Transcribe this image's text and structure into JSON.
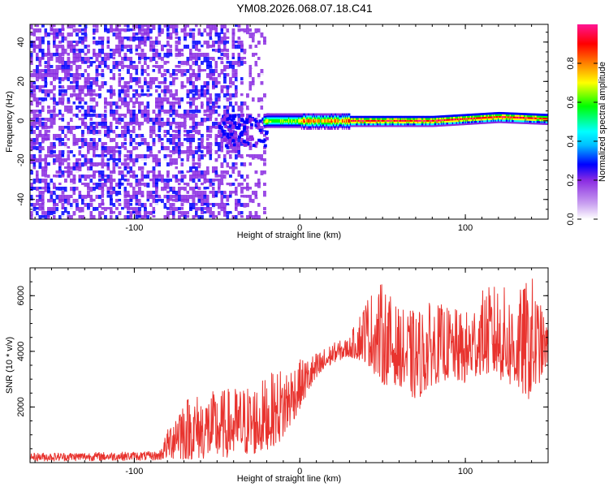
{
  "title": "YM08.2026.068.07.18.C41",
  "chart_data": [
    {
      "type": "heatmap",
      "name": "spectrogram",
      "xlabel": "Height of straight line (km)",
      "ylabel": "Frequency (Hz)",
      "xlim": [
        -163,
        150
      ],
      "ylim": [
        -50,
        49
      ],
      "xticks": [
        -100,
        0,
        100
      ],
      "yticks": [
        -40,
        -20,
        0,
        20,
        40
      ],
      "noise_region_x": [
        -163,
        -22
      ],
      "signal_band": [
        {
          "x": -40,
          "y": -3
        },
        {
          "x": -20,
          "y": 0
        },
        {
          "x": 0,
          "y": 0
        },
        {
          "x": 20,
          "y": 0
        },
        {
          "x": 40,
          "y": 0
        },
        {
          "x": 60,
          "y": 0
        },
        {
          "x": 80,
          "y": 0
        },
        {
          "x": 100,
          "y": 1
        },
        {
          "x": 120,
          "y": 2
        },
        {
          "x": 150,
          "y": 1
        }
      ],
      "colorbar": {
        "label": "Normalized spectral amplitude",
        "range": [
          0.0,
          1.0
        ],
        "ticks": [
          "0.0",
          "0.2",
          "0.4",
          "0.6",
          "0.8"
        ],
        "colors": [
          "#ffffff",
          "#8a2be2",
          "#0000ff",
          "#00ffff",
          "#00ff00",
          "#ffff00",
          "#ff8000",
          "#ff0000",
          "#ff1493"
        ]
      }
    },
    {
      "type": "line",
      "name": "snr",
      "xlabel": "Height of straight line (km)",
      "ylabel": "SNR (10 * v/v)",
      "xlim": [
        -163,
        150
      ],
      "ylim": [
        0,
        7000
      ],
      "xticks": [
        -100,
        0,
        100
      ],
      "yticks": [
        2000,
        4000,
        6000
      ],
      "color": "#e8332e",
      "envelope": [
        {
          "x": -163,
          "lo": 50,
          "hi": 350
        },
        {
          "x": -85,
          "lo": 80,
          "hi": 400
        },
        {
          "x": -72,
          "lo": 100,
          "hi": 2400
        },
        {
          "x": -50,
          "lo": 150,
          "hi": 2600
        },
        {
          "x": -25,
          "lo": 300,
          "hi": 2900
        },
        {
          "x": -10,
          "lo": 800,
          "hi": 3500
        },
        {
          "x": 5,
          "lo": 2500,
          "hi": 3800
        },
        {
          "x": 20,
          "lo": 3600,
          "hi": 4300
        },
        {
          "x": 30,
          "lo": 3800,
          "hi": 4500
        },
        {
          "x": 40,
          "lo": 3600,
          "hi": 6000
        },
        {
          "x": 50,
          "lo": 2800,
          "hi": 6500
        },
        {
          "x": 60,
          "lo": 2800,
          "hi": 5500
        },
        {
          "x": 70,
          "lo": 2200,
          "hi": 5500
        },
        {
          "x": 80,
          "lo": 2800,
          "hi": 5800
        },
        {
          "x": 90,
          "lo": 3000,
          "hi": 5600
        },
        {
          "x": 100,
          "lo": 2800,
          "hi": 5400
        },
        {
          "x": 110,
          "lo": 3200,
          "hi": 6200
        },
        {
          "x": 120,
          "lo": 3000,
          "hi": 6500
        },
        {
          "x": 130,
          "lo": 2600,
          "hi": 6000
        },
        {
          "x": 140,
          "lo": 2200,
          "hi": 6800
        },
        {
          "x": 150,
          "lo": 3600,
          "hi": 4800
        }
      ]
    }
  ]
}
